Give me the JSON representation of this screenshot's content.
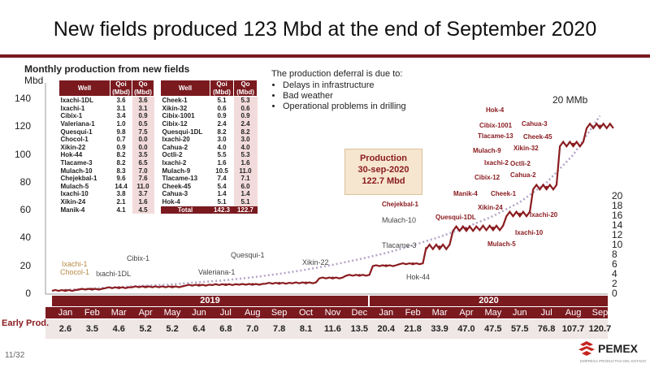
{
  "title": "New fields produced 123 Mbd at the end of September 2020",
  "subtitle": "Monthly production from new fields",
  "y_unit": "Mbd",
  "left_axis_ticks": [
    "0",
    "20",
    "40",
    "60",
    "80",
    "100",
    "120",
    "140"
  ],
  "right_axis_ticks": [
    "0",
    "2",
    "4",
    "6",
    "8",
    "10",
    "12",
    "14",
    "16",
    "18",
    "20"
  ],
  "target_label": "20 MMb",
  "notes": {
    "heading": "The production deferral is due to:",
    "items": [
      "Delays in infrastructure",
      "Bad weather",
      "Operational problems in drilling"
    ]
  },
  "production_box": {
    "line1": "Production",
    "line2": "30-sep-2020",
    "line3": "122.7 Mbd"
  },
  "well_table_headers": {
    "well": "Well",
    "qoi": "Qoi (Mbd)",
    "qo": "Qo (Mbd)"
  },
  "wells_left": [
    {
      "well": "Ixachi-1DL",
      "qoi": "3.6",
      "qo": "3.6"
    },
    {
      "well": "Ixachi-1",
      "qoi": "3.1",
      "qo": "3.1"
    },
    {
      "well": "Cibix-1",
      "qoi": "3.4",
      "qo": "0.9"
    },
    {
      "well": "Valeriana-1",
      "qoi": "1.0",
      "qo": "0.5"
    },
    {
      "well": "Quesqui-1",
      "qoi": "9.8",
      "qo": "7.5"
    },
    {
      "well": "Chocol-1",
      "qoi": "0.7",
      "qo": "0.0"
    },
    {
      "well": "Xikin-22",
      "qoi": "0.9",
      "qo": "0.0"
    },
    {
      "well": "Hok-44",
      "qoi": "8.2",
      "qo": "3.5"
    },
    {
      "well": "Tlacame-3",
      "qoi": "8.2",
      "qo": "6.5"
    },
    {
      "well": "Mulach-10",
      "qoi": "8.3",
      "qo": "7.0"
    },
    {
      "well": "Chejekbal-1",
      "qoi": "9.6",
      "qo": "7.6"
    },
    {
      "well": "Mulach-5",
      "qoi": "14.4",
      "qo": "11.0"
    },
    {
      "well": "Ixachi-10",
      "qoi": "3.8",
      "qo": "3.7"
    },
    {
      "well": "Xikin-24",
      "qoi": "2.1",
      "qo": "1.6"
    },
    {
      "well": "Manik-4",
      "qoi": "4.1",
      "qo": "4.5"
    }
  ],
  "wells_right": [
    {
      "well": "Cheek-1",
      "qoi": "5.1",
      "qo": "5.3"
    },
    {
      "well": "Xikin-32",
      "qoi": "0.6",
      "qo": "0.6"
    },
    {
      "well": "Cibix-1001",
      "qoi": "0.9",
      "qo": "0.9"
    },
    {
      "well": "Cibix-12",
      "qoi": "2.4",
      "qo": "2.4"
    },
    {
      "well": "Quesqui-1DL",
      "qoi": "8.2",
      "qo": "8.2"
    },
    {
      "well": "Ixachi-20",
      "qoi": "3.0",
      "qo": "3.0"
    },
    {
      "well": "Cahua-2",
      "qoi": "4.0",
      "qo": "4.0"
    },
    {
      "well": "Octli-2",
      "qoi": "5.5",
      "qo": "5.3"
    },
    {
      "well": "Ixachi-2",
      "qoi": "1.6",
      "qo": "1.6"
    },
    {
      "well": "Mulach-9",
      "qoi": "10.5",
      "qo": "11.0"
    },
    {
      "well": "Tlacame-13",
      "qoi": "7.4",
      "qo": "7.1"
    },
    {
      "well": "Cheek-45",
      "qoi": "5.4",
      "qo": "6.0"
    },
    {
      "well": "Cahua-3",
      "qoi": "1.4",
      "qo": "1.4"
    },
    {
      "well": "Hok-4",
      "qoi": "5.1",
      "qo": "5.1"
    }
  ],
  "total_row": {
    "label": "Total",
    "qoi": "142.3",
    "qo": "122.7"
  },
  "well_labels": [
    {
      "text": "Ixachi-1",
      "style": "gold"
    },
    {
      "text": "Chocol-1",
      "style": "gold"
    },
    {
      "text": "Ixachi-1DL",
      "style": "gray"
    },
    {
      "text": "Cibix-1",
      "style": "gray"
    },
    {
      "text": "Valeriana-1",
      "style": "gray"
    },
    {
      "text": "Quesqui-1",
      "style": "gray"
    },
    {
      "text": "Xikin-22",
      "style": "gray"
    },
    {
      "text": "Tlacame-3",
      "style": "gray"
    },
    {
      "text": "Hok-44",
      "style": "gray"
    },
    {
      "text": "Mulach-10",
      "style": "gray"
    },
    {
      "text": "Chejekbal-1",
      "style": "dark"
    },
    {
      "text": "Quesqui-1DL",
      "style": "dark"
    },
    {
      "text": "Manik-4",
      "style": "dark"
    },
    {
      "text": "Xikin-24",
      "style": "dark"
    },
    {
      "text": "Cheek-1",
      "style": "dark"
    },
    {
      "text": "Mulach-5",
      "style": "dark"
    },
    {
      "text": "Ixachi-10",
      "style": "dark"
    },
    {
      "text": "Ixachi-20",
      "style": "dark"
    },
    {
      "text": "Cibix-12",
      "style": "dark"
    },
    {
      "text": "Ixachi-2",
      "style": "dark"
    },
    {
      "text": "Octli-2",
      "style": "dark"
    },
    {
      "text": "Cahua-2",
      "style": "dark"
    },
    {
      "text": "Mulach-9",
      "style": "dark"
    },
    {
      "text": "Xikin-32",
      "style": "dark"
    },
    {
      "text": "Tlacame-13",
      "style": "dark"
    },
    {
      "text": "Cheek-45",
      "style": "dark"
    },
    {
      "text": "Cibix-1001",
      "style": "dark"
    },
    {
      "text": "Cahua-3",
      "style": "dark"
    },
    {
      "text": "Hok-4",
      "style": "dark"
    }
  ],
  "years": [
    "2019",
    "2020"
  ],
  "months": [
    "Jan",
    "Feb",
    "Mar",
    "Apr",
    "May",
    "Jun",
    "Jul",
    "Aug",
    "Sep",
    "Oct",
    "Nov",
    "Dec",
    "Jan",
    "Feb",
    "Mar",
    "Apr",
    "May",
    "Jun",
    "Jul",
    "Aug",
    "Sep"
  ],
  "early_label": "Early Prod.",
  "early_values": [
    "2.6",
    "3.5",
    "4.6",
    "5.2",
    "5.2",
    "6.4",
    "6.8",
    "7.0",
    "7.8",
    "8.1",
    "11.6",
    "13.5",
    "20.4",
    "21.8",
    "33.9",
    "47.0",
    "47.5",
    "57.5",
    "76.8",
    "107.7",
    "120.7"
  ],
  "page_number": "11/32",
  "logo": {
    "name": "PEMEX",
    "tagline": "EMPRESA PRODUCTIVA DEL ESTADO"
  },
  "colors": {
    "brand": "#7a1a1f",
    "series": "#8a1c20",
    "trend": "#b4a3c7",
    "box": "#f6e6cf"
  },
  "chart_data": {
    "type": "line",
    "title": "Monthly production from new fields",
    "ylabel": "Mbd",
    "ylim": [
      0,
      140
    ],
    "y2lim": [
      0,
      20
    ],
    "x": [
      "Jan 2019",
      "Feb 2019",
      "Mar 2019",
      "Apr 2019",
      "May 2019",
      "Jun 2019",
      "Jul 2019",
      "Aug 2019",
      "Sep 2019",
      "Oct 2019",
      "Nov 2019",
      "Dec 2019",
      "Jan 2020",
      "Feb 2020",
      "Mar 2020",
      "Apr 2020",
      "May 2020",
      "Jun 2020",
      "Jul 2020",
      "Aug 2020",
      "Sep 2020"
    ],
    "series": [
      {
        "values": [
          2.6,
          3.5,
          4.6,
          5.2,
          5.2,
          6.4,
          6.8,
          7.0,
          7.8,
          8.1,
          11.6,
          13.5,
          20.4,
          21.8,
          33.9,
          47.0,
          47.5,
          57.5,
          76.8,
          107.7,
          120.7
        ]
      }
    ],
    "trend": {
      "values": [
        3,
        4,
        5,
        6,
        7,
        8.5,
        10,
        12,
        14.5,
        17.5,
        21,
        25,
        29.5,
        35,
        41,
        48,
        56,
        66,
        80,
        100,
        128
      ]
    },
    "grid": false
  }
}
